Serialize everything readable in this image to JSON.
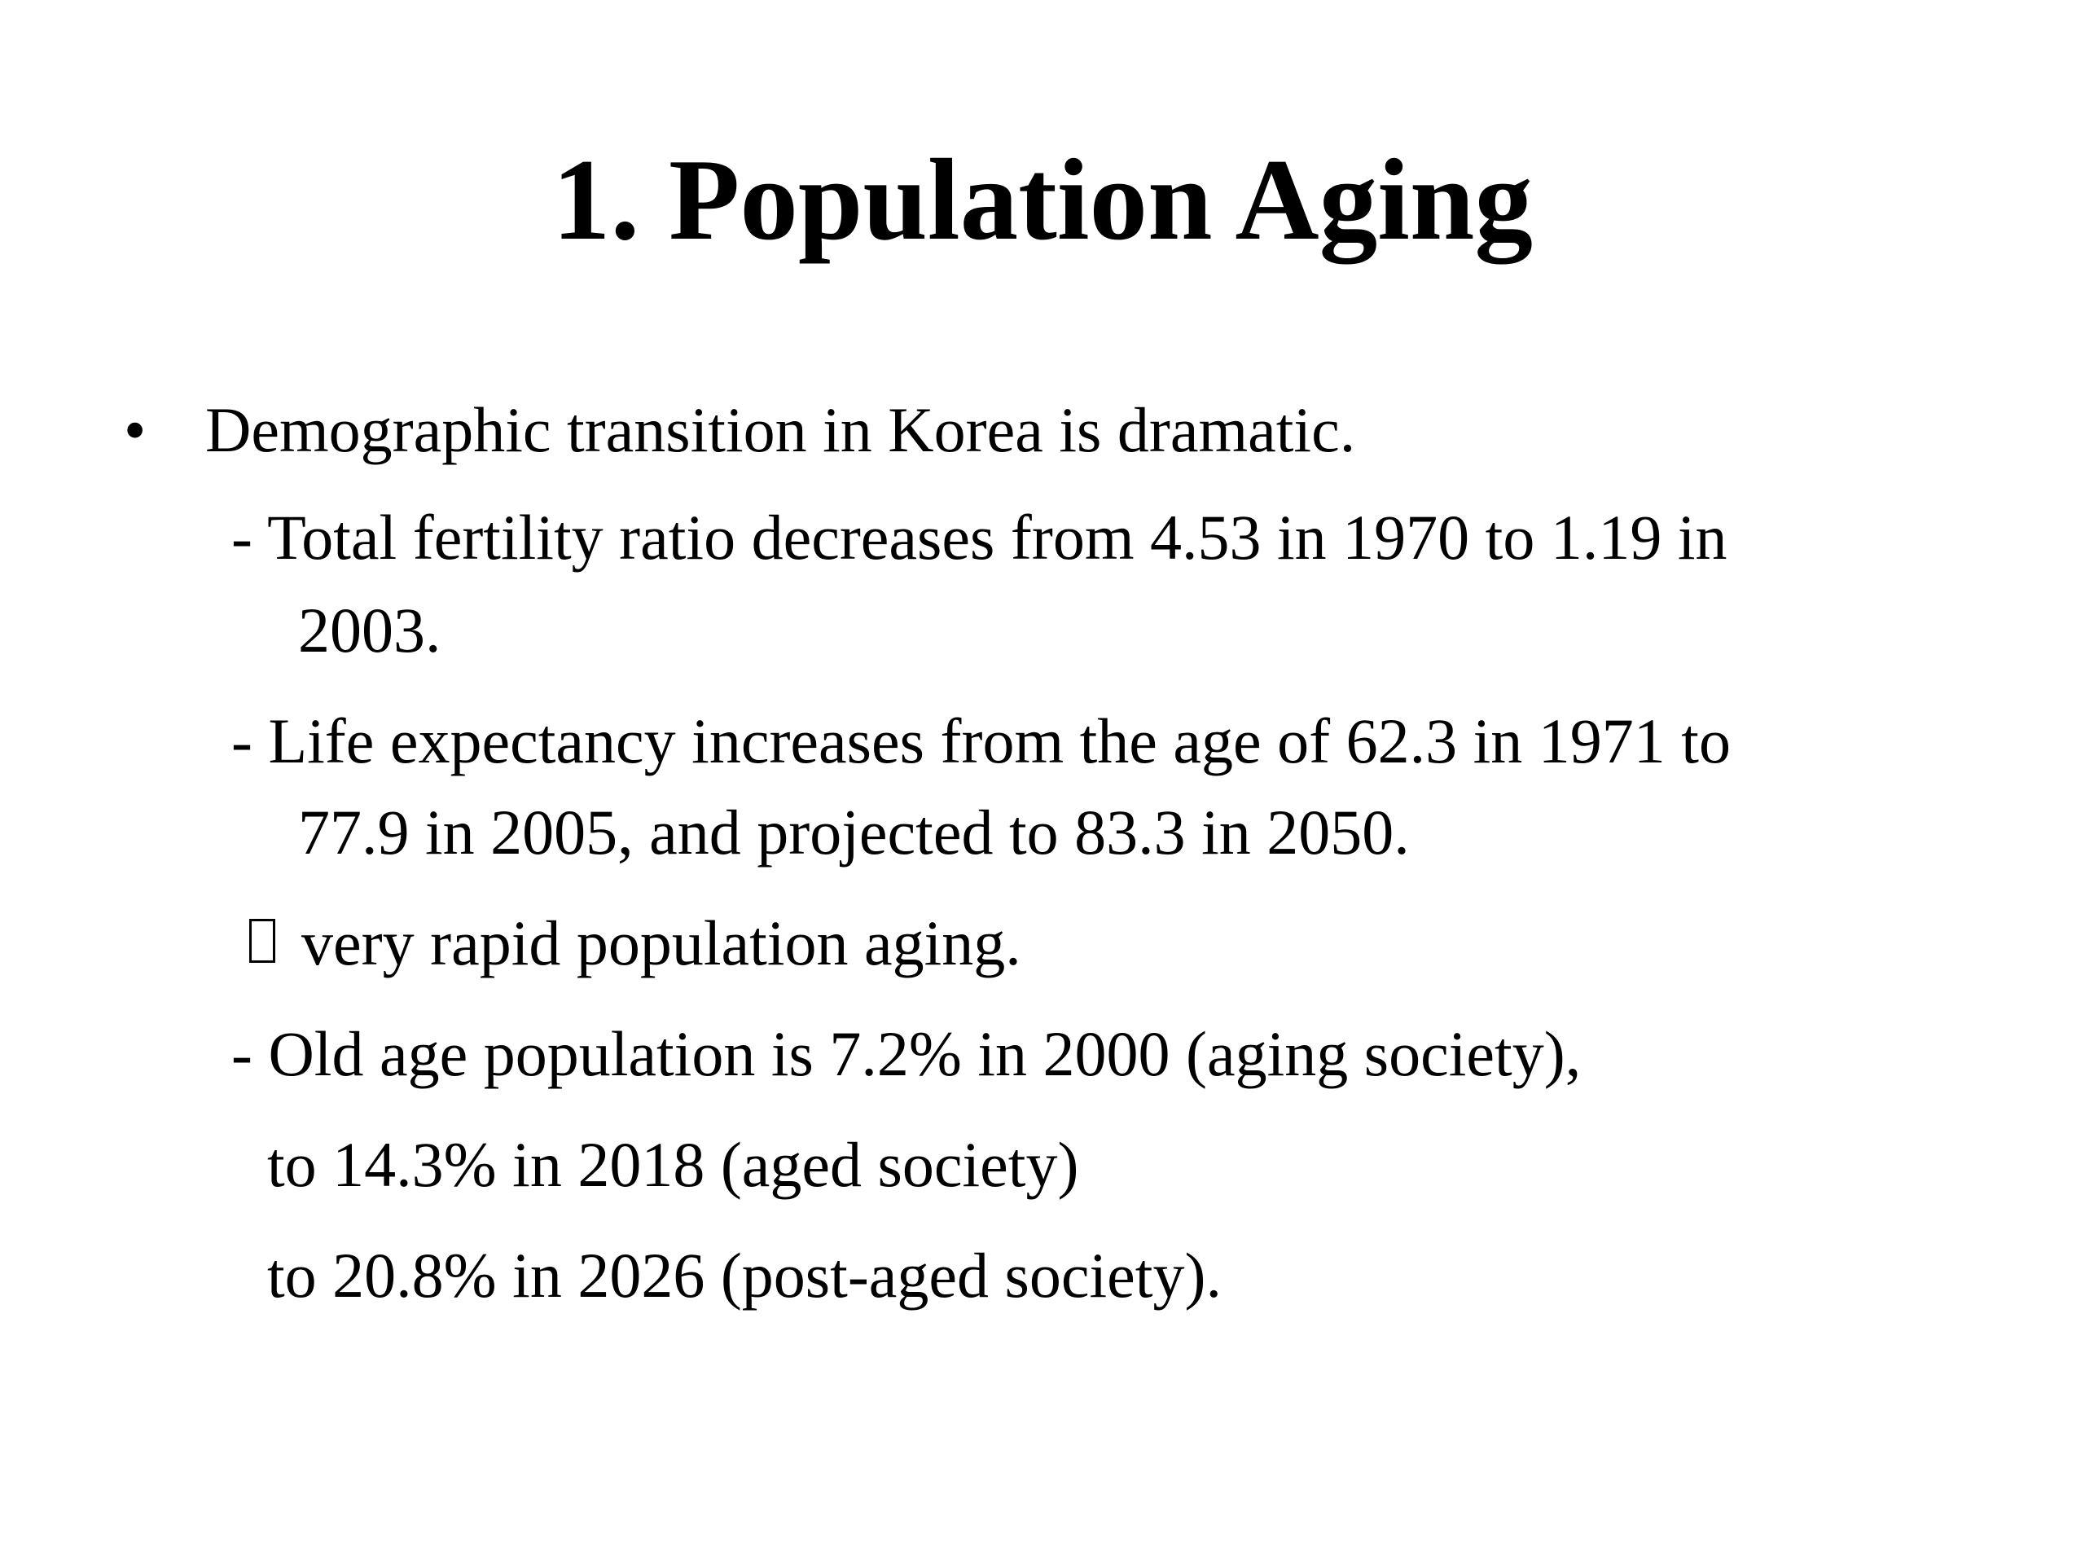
{
  "title": "1. Population Aging",
  "bullet": {
    "symbol": "•",
    "text": "Demographic transition in Korea is dramatic."
  },
  "lines": {
    "fertility_1": "- Total fertility ratio decreases from 4.53 in 1970 to 1.19 in",
    "fertility_2": "2003.",
    "life_1": "- Life expectancy increases from the age of 62.3 in 1971 to",
    "life_2": "77.9 in 2005, and projected to 83.3 in 2050.",
    "aging": "very rapid population aging.",
    "old_1": "- Old age population is 7.2% in 2000 (aging society),",
    "old_2": "to 14.3% in 2018 (aged society)",
    "old_3": "to 20.8% in 2026 (post-aged society)."
  },
  "icons": {
    "arrow_placeholder": "missing-glyph-arrow-icon"
  }
}
